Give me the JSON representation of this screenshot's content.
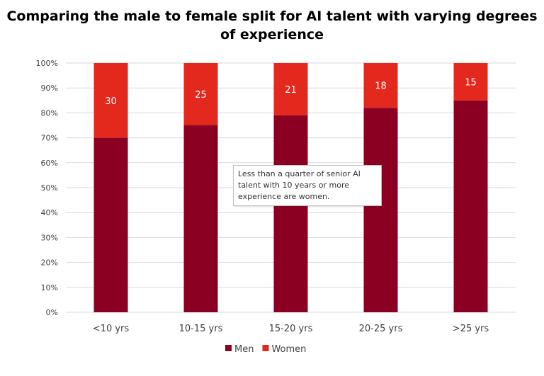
{
  "chart_data": {
    "type": "bar",
    "stacked": true,
    "title": "Comparing the male to female split for AI talent with varying degrees of experience",
    "categories": [
      "<10 yrs",
      "10-15 yrs",
      "15-20 yrs",
      "20-25 yrs",
      ">25 yrs"
    ],
    "series": [
      {
        "name": "Men",
        "values": [
          70,
          75,
          79,
          82,
          85
        ],
        "color": "#8B0022"
      },
      {
        "name": "Women",
        "values": [
          30,
          25,
          21,
          18,
          15
        ],
        "color": "#E3281E",
        "data_labels": [
          "30",
          "25",
          "21",
          "18",
          "15"
        ]
      }
    ],
    "ylim": [
      0,
      100
    ],
    "yticks": [
      "0%",
      "10%",
      "20%",
      "30%",
      "40%",
      "50%",
      "60%",
      "70%",
      "80%",
      "90%",
      "100%"
    ],
    "grid": true,
    "legend": "bottom",
    "annotation": "Less than a quarter of senior AI talent with 10 years or more experience are women."
  }
}
